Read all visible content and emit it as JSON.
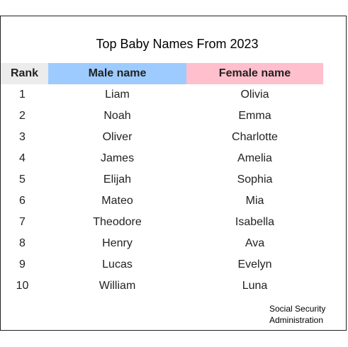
{
  "title": "Top Baby Names From 2023",
  "headers": {
    "rank": "Rank",
    "male": "Male name",
    "female": "Female name"
  },
  "rows": [
    {
      "rank": "1",
      "male": "Liam",
      "female": "Olivia"
    },
    {
      "rank": "2",
      "male": "Noah",
      "female": "Emma"
    },
    {
      "rank": "3",
      "male": "Oliver",
      "female": "Charlotte"
    },
    {
      "rank": "4",
      "male": "James",
      "female": "Amelia"
    },
    {
      "rank": "5",
      "male": "Elijah",
      "female": "Sophia"
    },
    {
      "rank": "6",
      "male": "Mateo",
      "female": "Mia"
    },
    {
      "rank": "7",
      "male": "Theodore",
      "female": "Isabella"
    },
    {
      "rank": "8",
      "male": "Henry",
      "female": "Ava"
    },
    {
      "rank": "9",
      "male": "Lucas",
      "female": "Evelyn"
    },
    {
      "rank": "10",
      "male": "William",
      "female": "Luna"
    }
  ],
  "source": {
    "line1": "Social Security",
    "line2": "Administration"
  },
  "colors": {
    "rank_header_bg": "#ececec",
    "male_header_bg": "#9ecbff",
    "female_header_bg": "#ffbfcc"
  }
}
